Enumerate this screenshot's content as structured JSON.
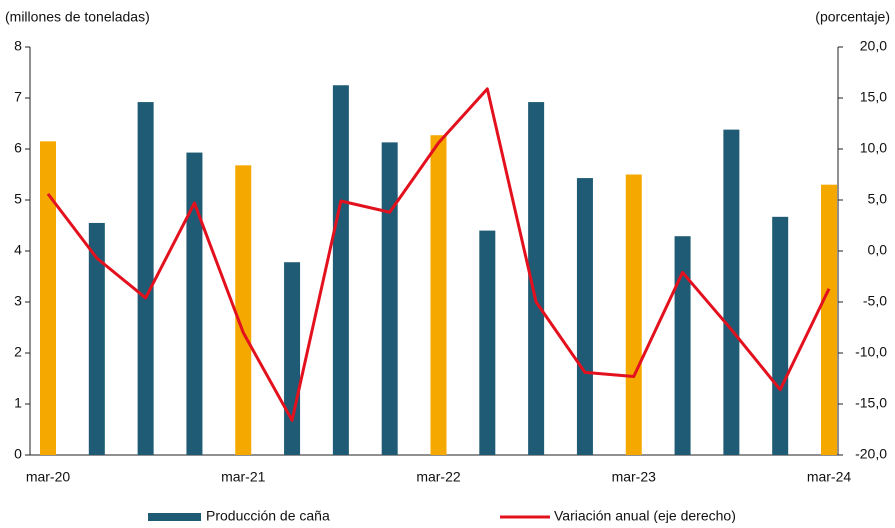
{
  "chart_data": {
    "type": "bar-line",
    "y_label": "(millones de toneladas)",
    "y2_label": "(porcentaje)",
    "categories": [
      "mar-20",
      null,
      null,
      null,
      "mar-21",
      null,
      null,
      null,
      "mar-22",
      null,
      null,
      null,
      "mar-23",
      null,
      null,
      null,
      "mar-24"
    ],
    "series": [
      {
        "name": "Producción de caña",
        "type": "bar",
        "color": "#1f5b74",
        "colors": [
          "#f5a800",
          "#1f5b74",
          "#1f5b74",
          "#1f5b74",
          "#f5a800",
          "#1f5b74",
          "#1f5b74",
          "#1f5b74",
          "#f5a800",
          "#1f5b74",
          "#1f5b74",
          "#1f5b74",
          "#f5a800",
          "#1f5b74",
          "#1f5b74",
          "#1f5b74",
          "#f5a800"
        ],
        "values": [
          6.15,
          4.55,
          6.92,
          5.93,
          5.68,
          3.78,
          7.25,
          6.13,
          6.27,
          4.4,
          6.92,
          5.43,
          5.5,
          4.29,
          6.38,
          4.67,
          5.3
        ]
      },
      {
        "name": "Variación anual (eje derecho)",
        "type": "line",
        "axis": "y2",
        "color": "#e3101e",
        "values": [
          5.6,
          -0.7,
          -4.6,
          4.7,
          -8.0,
          -16.6,
          4.9,
          3.8,
          10.6,
          15.9,
          -5.0,
          -11.9,
          -12.3,
          -2.1,
          -7.7,
          -13.6,
          -3.7
        ]
      }
    ],
    "ylim": [
      0,
      8
    ],
    "yticks": [
      0,
      1,
      2,
      3,
      4,
      5,
      6,
      7,
      8
    ],
    "y2lim": [
      -20,
      20
    ],
    "y2ticks": [
      {
        "value": -20,
        "label": "-20,0"
      },
      {
        "value": -15,
        "label": "-15,0"
      },
      {
        "value": -10,
        "label": "-10,0"
      },
      {
        "value": -5,
        "label": "-5,0"
      },
      {
        "value": 0,
        "label": "0,0"
      },
      {
        "value": 5,
        "label": "5,0"
      },
      {
        "value": 10,
        "label": "10,0"
      },
      {
        "value": 15,
        "label": "15,0"
      },
      {
        "value": 20,
        "label": "20,0"
      }
    ],
    "grid": false
  }
}
